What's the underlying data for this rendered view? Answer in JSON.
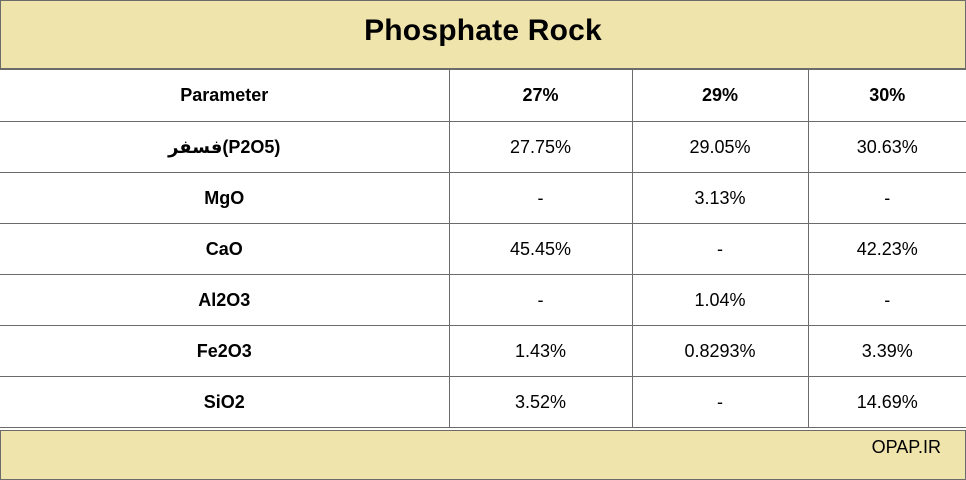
{
  "title": "Phosphate Rock",
  "columns": [
    "Parameter",
    "27%",
    "29%",
    "30%"
  ],
  "rows": [
    {
      "parameter": "فسفر(P2O5)",
      "values": [
        "27.75%",
        "29.05%",
        "30.63%"
      ]
    },
    {
      "parameter": "MgO",
      "values": [
        "-",
        "3.13%",
        "-"
      ]
    },
    {
      "parameter": "CaO",
      "values": [
        "45.45%",
        "-",
        "42.23%"
      ]
    },
    {
      "parameter": "Al2O3",
      "values": [
        "-",
        "1.04%",
        "-"
      ]
    },
    {
      "parameter": "Fe2O3",
      "values": [
        "1.43%",
        "0.8293%",
        "3.39%"
      ]
    },
    {
      "parameter": "SiO2",
      "values": [
        "3.52%",
        "-",
        "14.69%"
      ]
    }
  ],
  "footer": "OPAP.IR",
  "colors": {
    "band": "#f0e4ad",
    "border": "#6b6b6b"
  }
}
